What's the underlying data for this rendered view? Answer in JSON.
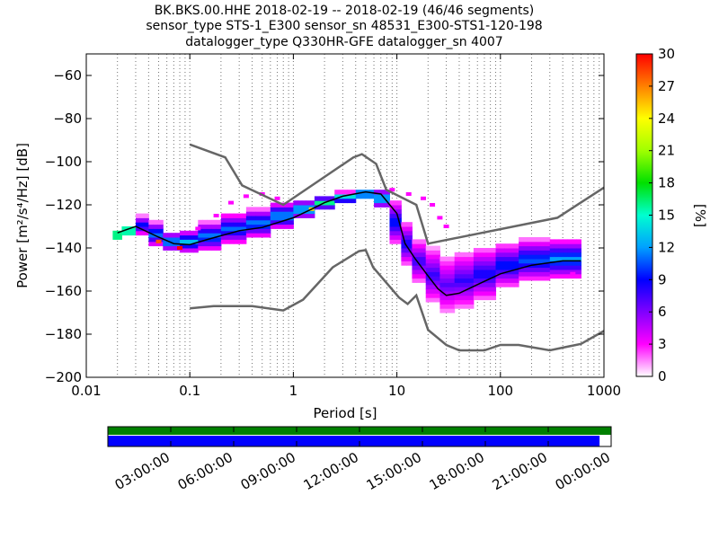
{
  "chart_data": {
    "type": "heatmap",
    "title_lines": [
      "BK.BKS.00.HHE   2018-02-19 -- 2018-02-19  (46/46 segments)",
      "sensor_type STS-1_E300 sensor_sn 48531_E300-STS1-120-198",
      "datalogger_type Q330HR-GFE datalogger_sn 4007"
    ],
    "xlabel": "Period [s]",
    "ylabel": "Power [m²/s⁴/Hz] [dB]",
    "x_scale": "log",
    "xlim": [
      0.01,
      1000
    ],
    "ylim": [
      -200,
      -50
    ],
    "x_ticks": [
      {
        "value": 0.01,
        "label": "0.01"
      },
      {
        "value": 0.1,
        "label": "0.1"
      },
      {
        "value": 1,
        "label": "1"
      },
      {
        "value": 10,
        "label": "10"
      },
      {
        "value": 100,
        "label": "100"
      },
      {
        "value": 1000,
        "label": "1000"
      }
    ],
    "y_ticks": [
      {
        "value": -60,
        "label": "−60"
      },
      {
        "value": -80,
        "label": "−80"
      },
      {
        "value": -100,
        "label": "−100"
      },
      {
        "value": -120,
        "label": "−120"
      },
      {
        "value": -140,
        "label": "−140"
      },
      {
        "value": -160,
        "label": "−160"
      },
      {
        "value": -180,
        "label": "−180"
      },
      {
        "value": -200,
        "label": "−200"
      }
    ],
    "grid": "dotted vertical",
    "colorbar": {
      "label": "[%]",
      "range": [
        0,
        30
      ],
      "ticks": [
        "0",
        "3",
        "6",
        "9",
        "12",
        "15",
        "18",
        "21",
        "24",
        "27",
        "30"
      ],
      "colormap": [
        "#ffffff",
        "#ff00ff",
        "#8000ff",
        "#0000ff",
        "#00a0ff",
        "#00ffd0",
        "#00e000",
        "#a0ff00",
        "#ffff00",
        "#ff8000",
        "#ff0000"
      ]
    },
    "series": [
      {
        "name": "NHNM",
        "color": "#666666",
        "points": [
          [
            0.1,
            -92
          ],
          [
            0.22,
            -98
          ],
          [
            0.32,
            -111
          ],
          [
            0.8,
            -120
          ],
          [
            3.8,
            -98
          ],
          [
            4.6,
            -96.5
          ],
          [
            6.3,
            -101
          ],
          [
            7.9,
            -113
          ],
          [
            15.4,
            -120
          ],
          [
            20,
            -138
          ],
          [
            354.8,
            -126
          ],
          [
            1000,
            -112
          ]
        ]
      },
      {
        "name": "NLNM",
        "color": "#666666",
        "points": [
          [
            0.1,
            -168
          ],
          [
            0.17,
            -167
          ],
          [
            0.4,
            -167
          ],
          [
            0.8,
            -169
          ],
          [
            1.24,
            -164
          ],
          [
            2.4,
            -149
          ],
          [
            4.3,
            -141.5
          ],
          [
            5.0,
            -141
          ],
          [
            5.9,
            -149
          ],
          [
            10.5,
            -163
          ],
          [
            12.7,
            -166
          ],
          [
            15.4,
            -162
          ],
          [
            20,
            -178
          ],
          [
            30,
            -185
          ],
          [
            40,
            -187.5
          ],
          [
            70,
            -187.5
          ],
          [
            100,
            -185
          ],
          [
            150,
            -185
          ],
          [
            300,
            -187.5
          ],
          [
            600,
            -184.5
          ],
          [
            1000,
            -178.5
          ]
        ]
      },
      {
        "name": "median",
        "color": "#000000",
        "points": [
          [
            0.02,
            -133
          ],
          [
            0.03,
            -130
          ],
          [
            0.05,
            -135
          ],
          [
            0.07,
            -138
          ],
          [
            0.1,
            -138.5
          ],
          [
            0.15,
            -136
          ],
          [
            0.3,
            -132
          ],
          [
            0.5,
            -130.5
          ],
          [
            1,
            -126
          ],
          [
            1.5,
            -122
          ],
          [
            2,
            -119
          ],
          [
            3,
            -116
          ],
          [
            5,
            -114
          ],
          [
            7,
            -115
          ],
          [
            10,
            -124
          ],
          [
            12,
            -138
          ],
          [
            15,
            -145
          ],
          [
            20,
            -153
          ],
          [
            25,
            -159
          ],
          [
            30,
            -162
          ],
          [
            40,
            -161
          ],
          [
            60,
            -157
          ],
          [
            100,
            -152
          ],
          [
            200,
            -148
          ],
          [
            400,
            -146
          ],
          [
            600,
            -146
          ]
        ]
      }
    ],
    "pdf_bands": [
      {
        "x": [
          0.018,
          0.022
        ],
        "y": [
          -136,
          -132
        ],
        "pct": 28
      },
      {
        "x": [
          0.022,
          0.03
        ],
        "y": [
          -134,
          -130
        ],
        "pct": 27
      },
      {
        "x": [
          0.03,
          0.04
        ],
        "y": [
          -134,
          -125
        ],
        "pct": 10
      },
      {
        "x": [
          0.04,
          0.055
        ],
        "y": [
          -139,
          -128
        ],
        "pct": 12
      },
      {
        "x": [
          0.055,
          0.08
        ],
        "y": [
          -141,
          -133
        ],
        "pct": 14
      },
      {
        "x": [
          0.08,
          0.12
        ],
        "y": [
          -142,
          -132
        ],
        "pct": 13
      },
      {
        "x": [
          0.12,
          0.2
        ],
        "y": [
          -141,
          -128
        ],
        "pct": 12
      },
      {
        "x": [
          0.2,
          0.35
        ],
        "y": [
          -138,
          -124
        ],
        "pct": 11
      },
      {
        "x": [
          0.35,
          0.6
        ],
        "y": [
          -135,
          -122
        ],
        "pct": 12
      },
      {
        "x": [
          0.6,
          1.0
        ],
        "y": [
          -131,
          -119
        ],
        "pct": 13
      },
      {
        "x": [
          1.0,
          1.6
        ],
        "y": [
          -126,
          -118
        ],
        "pct": 15
      },
      {
        "x": [
          1.6,
          2.5
        ],
        "y": [
          -122,
          -116
        ],
        "pct": 16
      },
      {
        "x": [
          2.5,
          4.0
        ],
        "y": [
          -119,
          -114
        ],
        "pct": 17
      },
      {
        "x": [
          4.0,
          6.0
        ],
        "y": [
          -117,
          -113
        ],
        "pct": 20
      },
      {
        "x": [
          6.0,
          8.5
        ],
        "y": [
          -121,
          -113
        ],
        "pct": 15
      },
      {
        "x": [
          8.5,
          11
        ],
        "y": [
          -138,
          -118
        ],
        "pct": 10
      },
      {
        "x": [
          11,
          14
        ],
        "y": [
          -148,
          -128
        ],
        "pct": 9
      },
      {
        "x": [
          14,
          19
        ],
        "y": [
          -156,
          -136
        ],
        "pct": 8
      },
      {
        "x": [
          19,
          26
        ],
        "y": [
          -165,
          -140
        ],
        "pct": 8
      },
      {
        "x": [
          26,
          36
        ],
        "y": [
          -170,
          -144
        ],
        "pct": 7
      },
      {
        "x": [
          36,
          55
        ],
        "y": [
          -168,
          -142
        ],
        "pct": 8
      },
      {
        "x": [
          55,
          90
        ],
        "y": [
          -164,
          -140
        ],
        "pct": 9
      },
      {
        "x": [
          90,
          150
        ],
        "y": [
          -158,
          -138
        ],
        "pct": 10
      },
      {
        "x": [
          150,
          300
        ],
        "y": [
          -155,
          -136
        ],
        "pct": 11
      },
      {
        "x": [
          300,
          600
        ],
        "y": [
          -154,
          -136
        ],
        "pct": 12
      }
    ],
    "pdf_scatter": [
      {
        "x": 0.08,
        "y": -140,
        "pct": 30
      },
      {
        "x": 0.05,
        "y": -137,
        "pct": 28
      },
      {
        "x": 1.5,
        "y": -122,
        "pct": 25
      },
      {
        "x": 0.12,
        "y": -131,
        "pct": 3
      },
      {
        "x": 0.18,
        "y": -125,
        "pct": 3
      },
      {
        "x": 0.25,
        "y": -119,
        "pct": 3
      },
      {
        "x": 0.35,
        "y": -116,
        "pct": 3
      },
      {
        "x": 0.5,
        "y": -115,
        "pct": 3
      },
      {
        "x": 0.7,
        "y": -117,
        "pct": 3
      },
      {
        "x": 9,
        "y": -113,
        "pct": 3
      },
      {
        "x": 13,
        "y": -115,
        "pct": 3
      },
      {
        "x": 18,
        "y": -117,
        "pct": 3
      },
      {
        "x": 22,
        "y": -120,
        "pct": 3
      },
      {
        "x": 26,
        "y": -126,
        "pct": 3
      },
      {
        "x": 30,
        "y": -130,
        "pct": 3
      },
      {
        "x": 500,
        "y": -152,
        "pct": 3
      }
    ],
    "coverage_ticks": [
      "03:00:00",
      "06:00:00",
      "09:00:00",
      "12:00:00",
      "15:00:00",
      "18:00:00",
      "21:00:00",
      "00:00:00"
    ],
    "coverage": {
      "data_color": "#008000",
      "processed_color": "#0000ff",
      "processed_fraction": 0.977
    }
  }
}
